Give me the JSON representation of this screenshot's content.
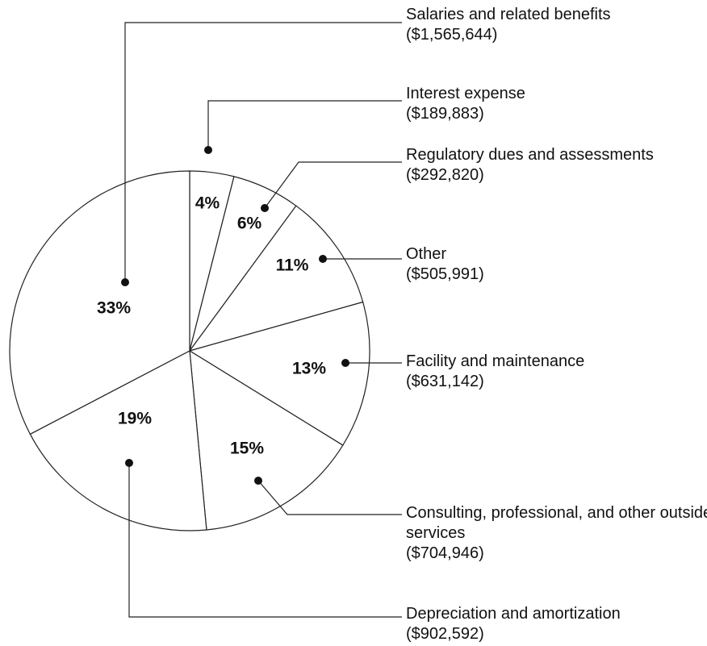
{
  "chart_data": {
    "type": "pie",
    "categories": [
      "Interest expense",
      "Regulatory dues and assessments",
      "Other",
      "Facility and maintenance",
      "Consulting, professional, and other outside services",
      "Depreciation and amortization",
      "Salaries and related benefits"
    ],
    "values": [
      4,
      6,
      11,
      13,
      15,
      19,
      33
    ],
    "value_labels": [
      "4%",
      "6%",
      "11%",
      "13%",
      "15%",
      "19%",
      "33%"
    ],
    "amounts": [
      189883,
      292820,
      505991,
      631142,
      704946,
      902592,
      1565644
    ],
    "amount_labels": [
      "($189,883)",
      "($292,820)",
      "($505,991)",
      "($631,142)",
      "($704,946)",
      "($902,592)",
      "($1,565,644)"
    ],
    "color": "#ffffff"
  }
}
